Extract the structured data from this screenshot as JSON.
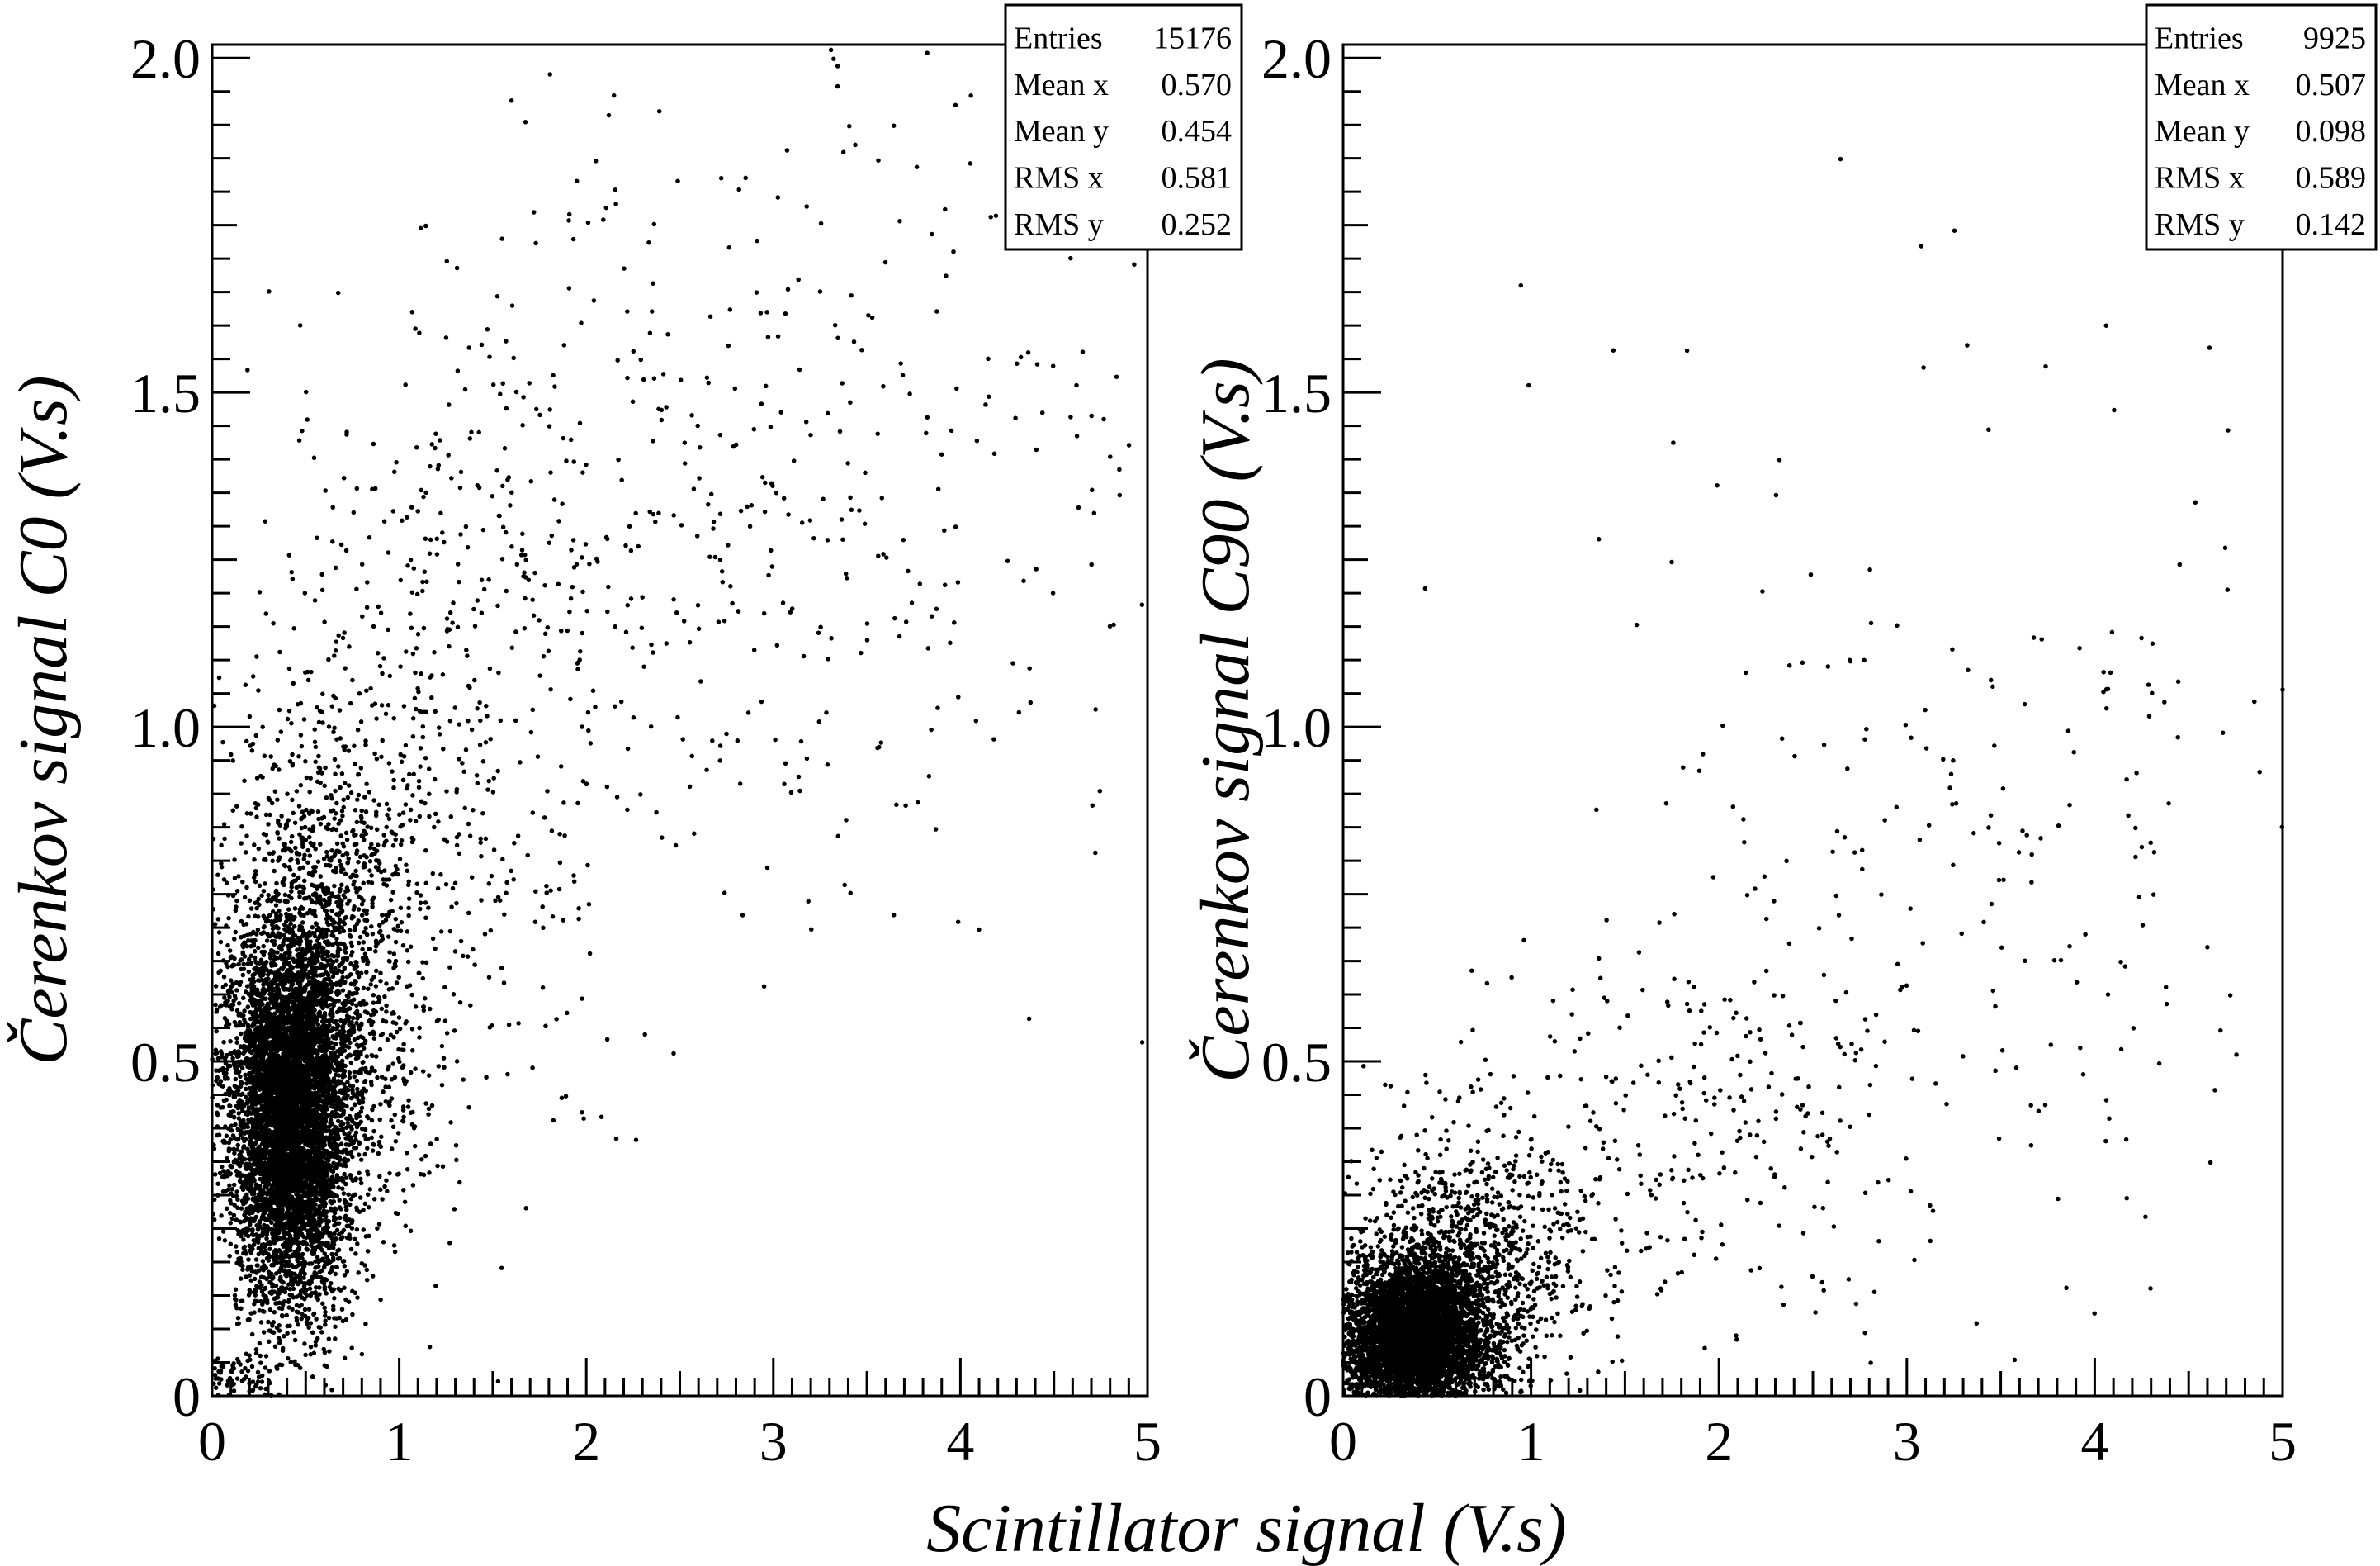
{
  "chart_data": [
    {
      "type": "scatter",
      "name": "C0",
      "ylabel": "Čerenkov signal C0 (V.s)",
      "xlim": [
        0,
        5
      ],
      "ylim": [
        0,
        2.02
      ],
      "x_ticks": [
        "0",
        "1",
        "2",
        "3",
        "4",
        "5"
      ],
      "y_ticks": [
        "0",
        "0.5",
        "1.0",
        "1.5",
        "2.0"
      ],
      "x_tick_values": [
        0,
        1,
        2,
        3,
        4,
        5
      ],
      "y_tick_values": [
        0,
        0.5,
        1.0,
        1.5,
        2.0
      ],
      "stats": {
        "labels": [
          "Entries",
          "Mean x",
          "Mean y",
          "RMS x",
          "RMS y"
        ],
        "values": [
          "15176",
          "0.570",
          "0.454",
          "0.581",
          "0.252"
        ]
      },
      "point_color": "#000000",
      "clusters": [
        {
          "count": 6200,
          "cx": 0.42,
          "cy": 0.42,
          "sx": 0.16,
          "sy": 0.14
        },
        {
          "count": 1600,
          "cx": 0.6,
          "cy": 0.62,
          "sx": 0.3,
          "sy": 0.2
        },
        {
          "count": 420,
          "cx": 1.3,
          "cy": 1.0,
          "sx": 0.5,
          "sy": 0.3
        },
        {
          "count": 260,
          "cx": 2.3,
          "cy": 1.3,
          "sx": 0.7,
          "sy": 0.3
        },
        {
          "count": 220,
          "cx": 3.6,
          "cy": 1.4,
          "sx": 0.9,
          "sy": 0.35
        },
        {
          "count": 80,
          "cx": 0.12,
          "cy": 0.03,
          "sx": 0.1,
          "sy": 0.015
        }
      ]
    },
    {
      "type": "scatter",
      "name": "C90",
      "ylabel": "Čerenkov signal C90 (V.s)",
      "xlim": [
        0,
        5
      ],
      "ylim": [
        0,
        2.02
      ],
      "x_ticks": [
        "0",
        "1",
        "2",
        "3",
        "4",
        "5"
      ],
      "y_ticks": [
        "0",
        "0.5",
        "1.0",
        "1.5",
        "2.0"
      ],
      "x_tick_values": [
        0,
        1,
        2,
        3,
        4,
        5
      ],
      "y_tick_values": [
        0,
        0.5,
        1.0,
        1.5,
        2.0
      ],
      "stats": {
        "labels": [
          "Entries",
          "Mean x",
          "Mean y",
          "RMS x",
          "RMS y"
        ],
        "values": [
          "9925",
          "0.507",
          "0.098",
          "0.589",
          "0.142"
        ]
      },
      "point_color": "#000000",
      "clusters": [
        {
          "count": 5200,
          "cx": 0.38,
          "cy": 0.09,
          "sx": 0.2,
          "sy": 0.06
        },
        {
          "count": 900,
          "cx": 0.7,
          "cy": 0.2,
          "sx": 0.3,
          "sy": 0.1
        },
        {
          "count": 300,
          "cx": 1.8,
          "cy": 0.38,
          "sx": 0.6,
          "sy": 0.15
        },
        {
          "count": 200,
          "cx": 3.4,
          "cy": 0.75,
          "sx": 0.8,
          "sy": 0.3
        },
        {
          "count": 30,
          "cx": 2.5,
          "cy": 1.4,
          "sx": 1.2,
          "sy": 0.3
        }
      ]
    }
  ],
  "shared": {
    "xlabel": "Scintillator signal (V.s)"
  }
}
